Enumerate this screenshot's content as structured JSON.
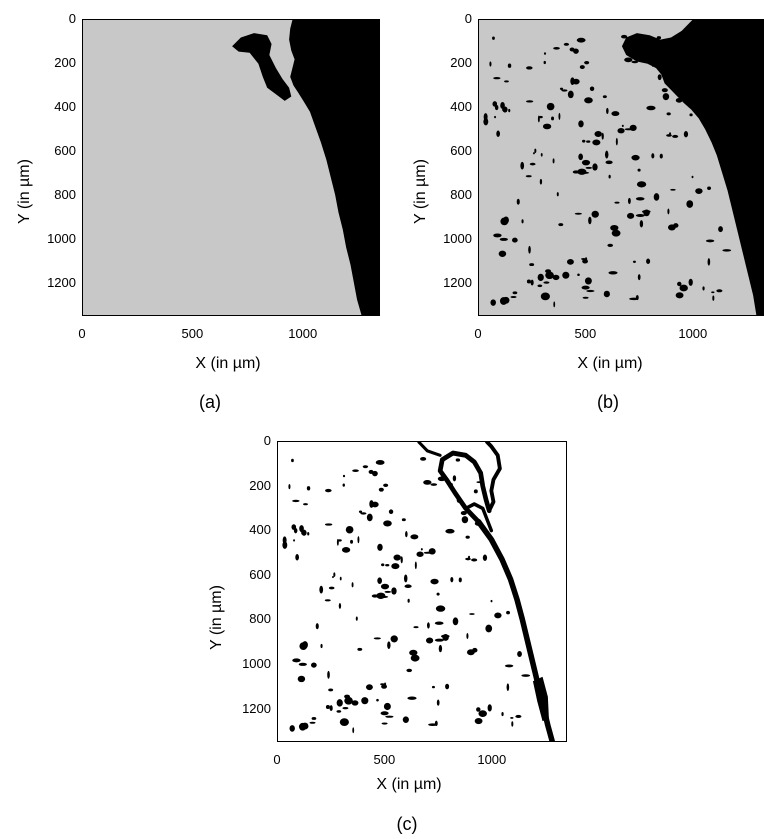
{
  "chart_data": [
    {
      "type": "heatmap",
      "caption": "(a)",
      "xlabel": "X (in µm)",
      "ylabel": "Y (in µm)",
      "xlim": [
        0,
        1350
      ],
      "ylim": [
        0,
        1350
      ],
      "x_ticks": [
        "0",
        "500",
        "1000"
      ],
      "y_ticks": [
        "0",
        "200",
        "400",
        "600",
        "800",
        "1000",
        "1200"
      ],
      "y_reversed": true,
      "colors": {
        "background": "#c8c8c8",
        "phase": "#000000"
      }
    },
    {
      "type": "heatmap",
      "caption": "(b)",
      "xlabel": "X (in µm)",
      "ylabel": "Y (in µm)",
      "xlim": [
        0,
        1350
      ],
      "ylim": [
        0,
        1350
      ],
      "x_ticks": [
        "0",
        "500",
        "1000"
      ],
      "y_ticks": [
        "0",
        "200",
        "400",
        "600",
        "800",
        "1000",
        "1200"
      ],
      "y_reversed": true,
      "colors": {
        "background": "#c8c8c8",
        "phase": "#000000"
      }
    },
    {
      "type": "heatmap",
      "caption": "(c)",
      "xlabel": "X (in µm)",
      "ylabel": "Y (in µm)",
      "xlim": [
        0,
        1350
      ],
      "ylim": [
        0,
        1350
      ],
      "x_ticks": [
        "0",
        "500",
        "1000"
      ],
      "y_ticks": [
        "0",
        "200",
        "400",
        "600",
        "800",
        "1000",
        "1200"
      ],
      "y_reversed": true,
      "colors": {
        "background": "#ffffff",
        "phase": "#000000"
      }
    }
  ]
}
